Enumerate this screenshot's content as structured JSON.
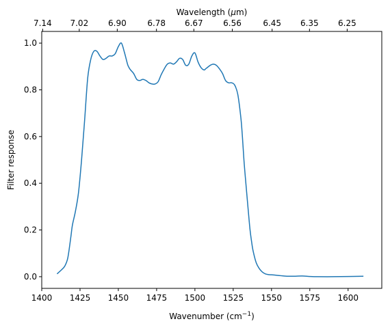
{
  "chart_data": {
    "type": "line",
    "xlabel": "Wavenumber (cm",
    "xlabel_sup": "−1",
    "xlabel_suffix": ")",
    "ylabel": "Filter response",
    "top_xlabel_prefix": "Wavelength (",
    "top_xlabel_mu": "μ",
    "top_xlabel_suffix": "m)",
    "xlim": [
      1400,
      1622
    ],
    "ylim": [
      -0.05,
      1.05
    ],
    "x_ticks": [
      1400,
      1425,
      1450,
      1475,
      1500,
      1525,
      1550,
      1575,
      1600
    ],
    "x_tick_labels": [
      "1400",
      "1425",
      "1450",
      "1475",
      "1500",
      "1525",
      "1550",
      "1575",
      "1600"
    ],
    "y_ticks": [
      0.0,
      0.2,
      0.4,
      0.6,
      0.8,
      1.0
    ],
    "y_tick_labels": [
      "0.0",
      "0.2",
      "0.4",
      "0.6",
      "0.8",
      "1.0"
    ],
    "top_ticks": [
      {
        "x": 1400.6,
        "label": "7.14"
      },
      {
        "x": 1424.5,
        "label": "7.02"
      },
      {
        "x": 1449.3,
        "label": "6.90"
      },
      {
        "x": 1474.9,
        "label": "6.78"
      },
      {
        "x": 1499.3,
        "label": "6.67"
      },
      {
        "x": 1524.4,
        "label": "6.56"
      },
      {
        "x": 1550.4,
        "label": "6.45"
      },
      {
        "x": 1574.8,
        "label": "6.35"
      },
      {
        "x": 1599.4,
        "label": "6.25"
      }
    ],
    "grid": false,
    "series": [
      {
        "color": "#1f77b4",
        "x": [
          1410,
          1413,
          1415,
          1417,
          1419,
          1420,
          1422,
          1424,
          1426,
          1428,
          1430,
          1432,
          1434,
          1436,
          1438,
          1440,
          1442,
          1444,
          1446,
          1448,
          1450,
          1452,
          1454,
          1456,
          1457,
          1458,
          1460,
          1462,
          1464,
          1466,
          1468,
          1470,
          1472,
          1474,
          1476,
          1478,
          1480,
          1482,
          1484,
          1486,
          1488,
          1490,
          1492,
          1494,
          1496,
          1498,
          1500,
          1502,
          1504,
          1506,
          1507,
          1508,
          1510,
          1512,
          1514,
          1516,
          1518,
          1520,
          1522,
          1524,
          1526,
          1528,
          1530,
          1531,
          1532,
          1533,
          1535,
          1536,
          1537,
          1538,
          1540,
          1542,
          1544,
          1546,
          1548,
          1550,
          1552,
          1555,
          1558,
          1560,
          1563,
          1565,
          1570,
          1575,
          1580,
          1590,
          1600,
          1610
        ],
        "y": [
          0.012,
          0.03,
          0.045,
          0.08,
          0.17,
          0.22,
          0.28,
          0.36,
          0.5,
          0.67,
          0.85,
          0.93,
          0.965,
          0.965,
          0.945,
          0.93,
          0.935,
          0.945,
          0.945,
          0.955,
          0.985,
          1.0,
          0.96,
          0.91,
          0.895,
          0.885,
          0.87,
          0.845,
          0.84,
          0.845,
          0.84,
          0.83,
          0.825,
          0.825,
          0.835,
          0.865,
          0.89,
          0.91,
          0.915,
          0.91,
          0.92,
          0.935,
          0.93,
          0.905,
          0.91,
          0.945,
          0.958,
          0.92,
          0.895,
          0.885,
          0.89,
          0.895,
          0.905,
          0.91,
          0.905,
          0.89,
          0.87,
          0.84,
          0.83,
          0.83,
          0.82,
          0.78,
          0.68,
          0.6,
          0.5,
          0.42,
          0.27,
          0.2,
          0.15,
          0.11,
          0.06,
          0.035,
          0.02,
          0.012,
          0.009,
          0.008,
          0.007,
          0.005,
          0.003,
          0.002,
          0.002,
          0.002,
          0.003,
          0.001,
          0.0,
          0.0,
          0.001,
          0.002
        ]
      }
    ]
  }
}
